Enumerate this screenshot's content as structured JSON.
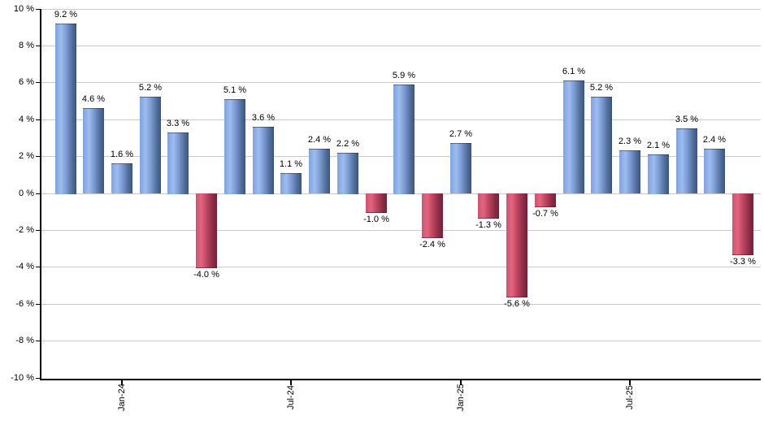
{
  "chart_data": {
    "type": "bar",
    "description": "Monthly returns bar chart, blue bars positive and red bars negative",
    "unit": "%",
    "values": [
      9.2,
      4.6,
      1.6,
      5.2,
      3.3,
      -4.0,
      5.1,
      3.6,
      1.1,
      2.4,
      2.2,
      -1.0,
      5.9,
      -2.4,
      2.7,
      -1.3,
      -5.6,
      -0.7,
      6.1,
      5.2,
      2.3,
      2.1,
      3.5,
      2.4,
      -3.3
    ],
    "bar_value_labels": [
      "9.2 %",
      "4.6 %",
      "1.6 %",
      "5.2 %",
      "3.3 %",
      "-4.0 %",
      "5.1 %",
      "3.6 %",
      "1.1 %",
      "2.4 %",
      "2.2 %",
      "-1.0 %",
      "5.9 %",
      "-2.4 %",
      "2.7 %",
      "-1.3 %",
      "-5.6 %",
      "-0.7 %",
      "6.1 %",
      "5.2 %",
      "2.3 %",
      "2.1 %",
      "3.5 %",
      "2.4 %",
      "-3.3 %"
    ],
    "x_ticks": [
      {
        "label": "Jan-24",
        "bar_index": 2
      },
      {
        "label": "Jul-24",
        "bar_index": 8
      },
      {
        "label": "Jan-25",
        "bar_index": 14
      },
      {
        "label": "Jul-25",
        "bar_index": 20
      }
    ],
    "y_ticks": [
      10,
      8,
      6,
      4,
      2,
      0,
      -2,
      -4,
      -6,
      -8,
      -10
    ],
    "y_tick_labels": [
      "10 %",
      "8 %",
      "6 %",
      "4 %",
      "2 %",
      "0 %",
      "-2 %",
      "-4 %",
      "-6 %",
      "-8 %",
      "-10 %"
    ],
    "ylim": [
      -10,
      10
    ],
    "grid": "horizontal",
    "legend": "none",
    "colors": {
      "positive_bar": "#7FA3E0",
      "negative_bar": "#CE5270",
      "gridline": "#C9C9C9",
      "axis": "#000000",
      "label_text": "#000000",
      "background": "#FFFFFF"
    }
  }
}
